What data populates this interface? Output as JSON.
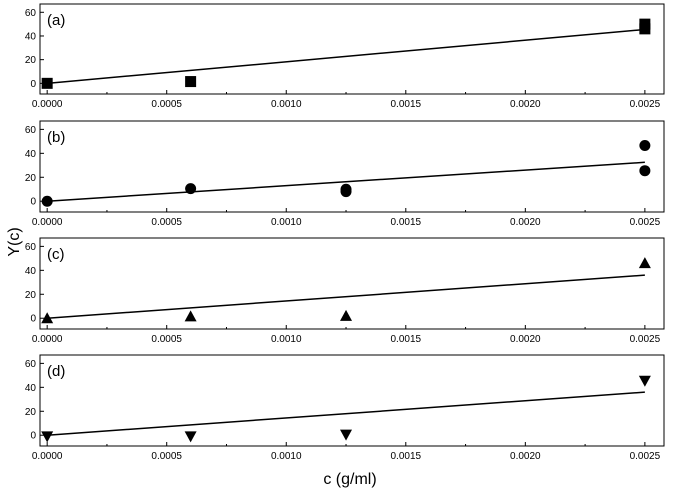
{
  "chart_data": [
    {
      "type": "scatter",
      "panel_label": "(a)",
      "marker": "square",
      "points": [
        [
          0.0,
          0.0
        ],
        [
          0.0006,
          1.5
        ],
        [
          0.0025,
          50.0
        ],
        [
          0.0025,
          46.0
        ]
      ],
      "fit_line": [
        [
          0.0,
          0.0
        ],
        [
          0.0025,
          45.5
        ]
      ],
      "xlim": [
        -3e-05,
        0.00258
      ],
      "ylim": [
        -9,
        67
      ],
      "yticks": [
        0,
        20,
        40,
        60
      ],
      "xticks": [
        "0.0000",
        "0.0005",
        "0.0010",
        "0.0015",
        "0.0020",
        "0.0025"
      ]
    },
    {
      "type": "scatter",
      "panel_label": "(b)",
      "marker": "circle",
      "points": [
        [
          0.0,
          0.0
        ],
        [
          0.0006,
          10.5
        ],
        [
          0.00125,
          10.0
        ],
        [
          0.00125,
          8.0
        ],
        [
          0.0025,
          46.5
        ],
        [
          0.0025,
          25.5
        ]
      ],
      "fit_line": [
        [
          0.0,
          0.0
        ],
        [
          0.0025,
          32.5
        ]
      ],
      "xlim": [
        -3e-05,
        0.00258
      ],
      "ylim": [
        -9,
        67
      ],
      "yticks": [
        0,
        20,
        40,
        60
      ],
      "xticks": [
        "0.0000",
        "0.0005",
        "0.0010",
        "0.0015",
        "0.0020",
        "0.0025"
      ]
    },
    {
      "type": "scatter",
      "panel_label": "(c)",
      "marker": "triangle-up",
      "points": [
        [
          0.0,
          0.0
        ],
        [
          0.0006,
          1.5
        ],
        [
          0.00125,
          2.0
        ],
        [
          0.0025,
          46.0
        ]
      ],
      "fit_line": [
        [
          0.0,
          0.0
        ],
        [
          0.0025,
          36.0
        ]
      ],
      "xlim": [
        -3e-05,
        0.00258
      ],
      "ylim": [
        -9,
        67
      ],
      "yticks": [
        0,
        20,
        40,
        60
      ],
      "xticks": [
        "0.0000",
        "0.0005",
        "0.0010",
        "0.0015",
        "0.0020",
        "0.0025"
      ]
    },
    {
      "type": "scatter",
      "panel_label": "(d)",
      "marker": "triangle-down",
      "points": [
        [
          0.0,
          -1.0
        ],
        [
          0.0006,
          -1.0
        ],
        [
          0.00125,
          0.5
        ],
        [
          0.0025,
          45.5
        ]
      ],
      "fit_line": [
        [
          0.0,
          0.0
        ],
        [
          0.0025,
          36.0
        ]
      ],
      "xlim": [
        -3e-05,
        0.00258
      ],
      "ylim": [
        -9,
        67
      ],
      "yticks": [
        0,
        20,
        40,
        60
      ],
      "xticks": [
        "0.0000",
        "0.0005",
        "0.0010",
        "0.0015",
        "0.0020",
        "0.0025"
      ]
    }
  ],
  "xlabel": "c (g/ml)",
  "ylabel": "Y(c)",
  "grid": false,
  "colors": {
    "marker": "#000000",
    "line": "#000000",
    "frame": "#000000"
  }
}
